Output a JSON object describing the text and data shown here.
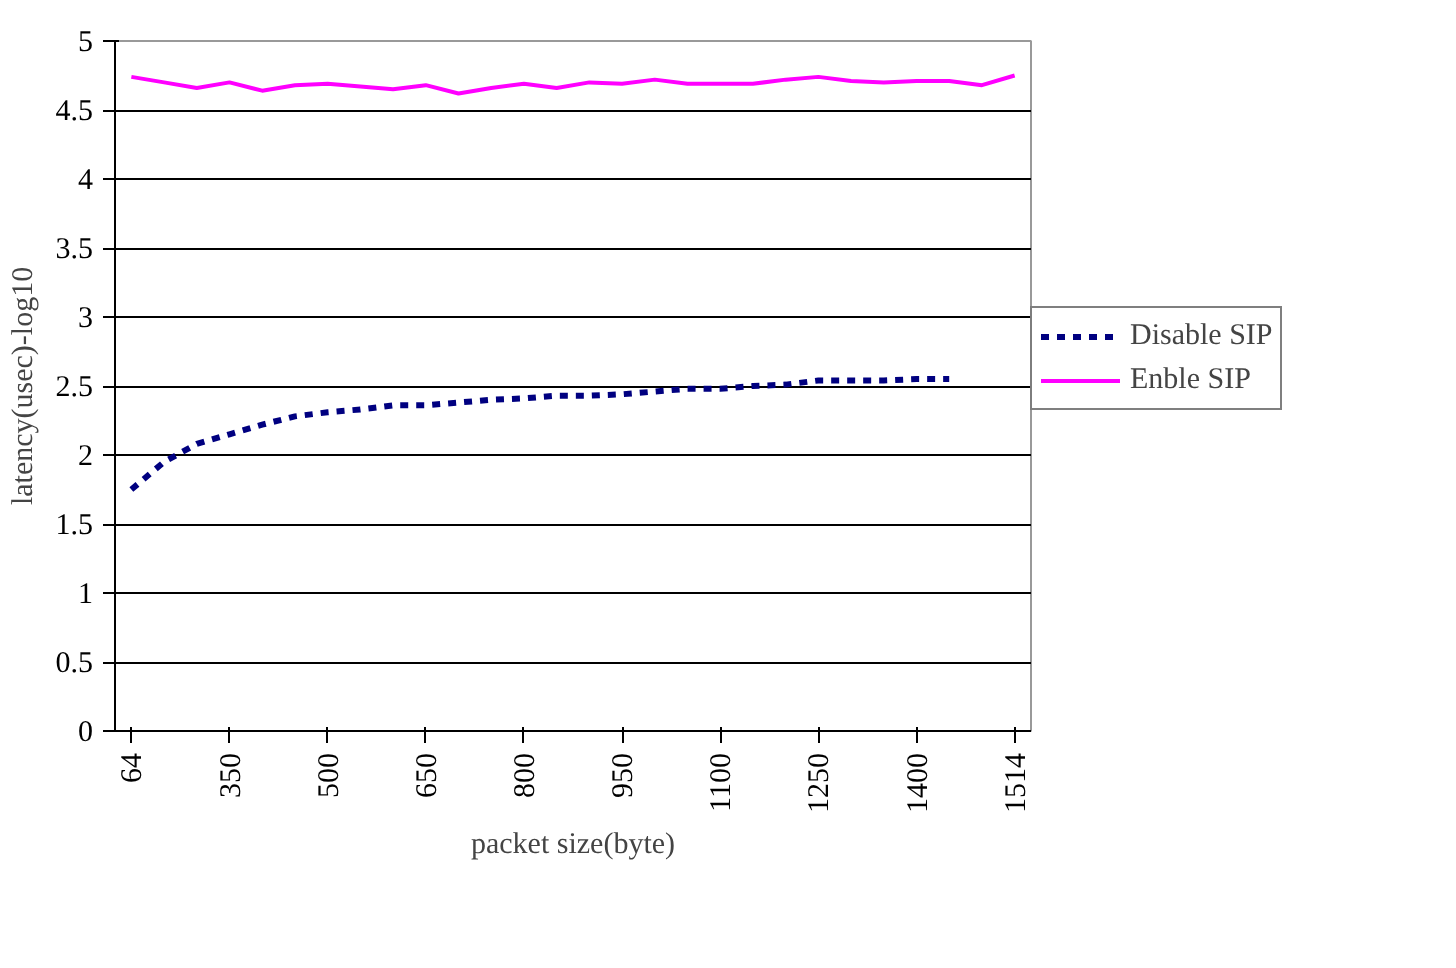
{
  "chart_data": {
    "type": "line",
    "xlabel": "packet size(byte)",
    "ylabel": "latency(usec)-log10",
    "categories": [
      "64",
      null,
      null,
      "350",
      null,
      null,
      "500",
      null,
      null,
      "650",
      null,
      null,
      "800",
      null,
      null,
      "950",
      null,
      null,
      "1100",
      null,
      null,
      "1250",
      null,
      null,
      "1400",
      null,
      null,
      "1514"
    ],
    "ylim": [
      0,
      5
    ],
    "yticks": [
      0,
      0.5,
      1,
      1.5,
      2,
      2.5,
      3,
      3.5,
      4,
      4.5,
      5
    ],
    "grid": "y",
    "legend": "right",
    "marker": "none",
    "series": [
      {
        "name": "Disable SIP",
        "color": "#000080",
        "line_style": "dashed",
        "values": [
          1.75,
          1.95,
          2.08,
          2.15,
          2.22,
          2.28,
          2.31,
          2.33,
          2.36,
          2.36,
          2.38,
          2.4,
          2.41,
          2.43,
          2.43,
          2.44,
          2.46,
          2.48,
          2.48,
          2.5,
          2.51,
          2.54,
          2.54,
          2.54,
          2.55,
          2.55,
          null,
          null
        ]
      },
      {
        "name": "Enble SIP",
        "color": "#ff00ff",
        "line_style": "solid",
        "values": [
          4.74,
          4.7,
          4.66,
          4.7,
          4.64,
          4.68,
          4.69,
          4.67,
          4.65,
          4.68,
          4.62,
          4.66,
          4.69,
          4.66,
          4.7,
          4.69,
          4.72,
          4.69,
          4.69,
          4.69,
          4.72,
          4.74,
          4.71,
          4.7,
          4.71,
          4.71,
          4.68,
          4.75
        ]
      }
    ]
  }
}
